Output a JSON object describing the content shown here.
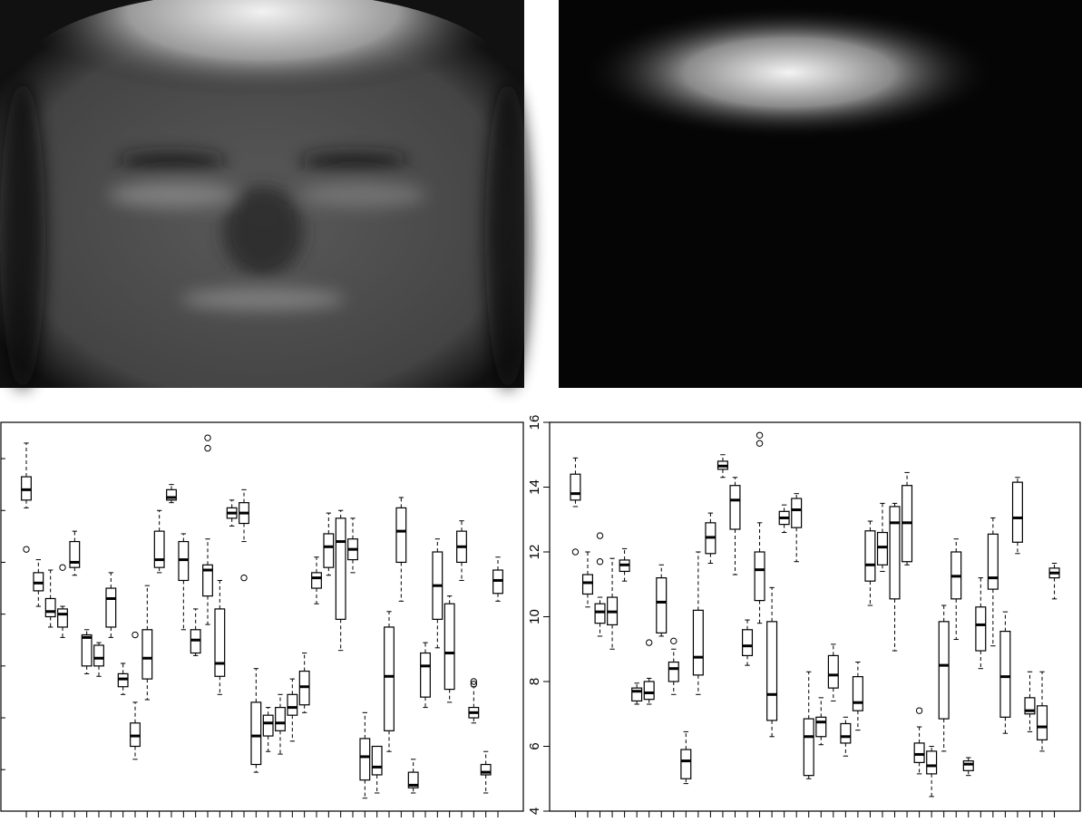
{
  "chart_data": [
    {
      "type": "boxplot",
      "ytick_labels": false,
      "x": [
        1,
        2,
        3,
        4,
        5,
        6,
        7,
        8,
        9,
        10,
        11,
        12,
        13,
        14,
        15,
        16,
        17,
        18,
        19,
        20,
        21,
        22,
        23,
        24,
        25,
        26,
        27,
        28,
        29,
        30,
        31,
        32,
        33,
        34,
        35,
        36,
        37,
        38,
        39,
        40
      ],
      "xlim": [
        -1.1,
        42.1
      ],
      "ylim": [
        2.4,
        17.4
      ],
      "yticks": [
        4,
        6,
        8,
        10,
        12,
        14,
        16
      ],
      "boxes": [
        {
          "min": 14.1,
          "q1": 14.4,
          "median": 14.8,
          "q3": 15.3,
          "max": 16.6,
          "outliers": [
            12.5
          ]
        },
        {
          "min": 10.3,
          "q1": 10.9,
          "median": 11.2,
          "q3": 11.6,
          "max": 12.1
        },
        {
          "min": 9.5,
          "q1": 9.9,
          "median": 10.1,
          "q3": 10.6,
          "max": 11.7
        },
        {
          "min": 9.1,
          "q1": 9.5,
          "median": 10.0,
          "q3": 10.2,
          "max": 10.3,
          "outliers": [
            11.8
          ]
        },
        {
          "min": 11.5,
          "q1": 11.8,
          "median": 12.0,
          "q3": 12.8,
          "max": 13.2
        },
        {
          "min": 7.7,
          "q1": 8.0,
          "median": 9.1,
          "q3": 9.2,
          "max": 9.4
        },
        {
          "min": 7.6,
          "q1": 8.0,
          "median": 8.3,
          "q3": 8.8,
          "max": 8.9
        },
        {
          "min": 9.1,
          "q1": 9.5,
          "median": 10.6,
          "q3": 11.0,
          "max": 11.6
        },
        {
          "min": 6.9,
          "q1": 7.2,
          "median": 7.5,
          "q3": 7.7,
          "max": 8.1
        },
        {
          "min": 4.4,
          "q1": 4.9,
          "median": 5.3,
          "q3": 5.8,
          "max": 6.6,
          "outliers": [
            9.2
          ]
        },
        {
          "min": 6.7,
          "q1": 7.5,
          "median": 8.3,
          "q3": 9.4,
          "max": 11.1
        },
        {
          "min": 11.6,
          "q1": 11.8,
          "median": 12.1,
          "q3": 13.2,
          "max": 14.0
        },
        {
          "min": 14.3,
          "q1": 14.4,
          "median": 14.5,
          "q3": 14.8,
          "max": 15.0
        },
        {
          "min": 9.4,
          "q1": 11.3,
          "median": 12.1,
          "q3": 12.8,
          "max": 13.1
        },
        {
          "min": 8.4,
          "q1": 8.5,
          "median": 9.0,
          "q3": 9.4,
          "max": 10.2
        },
        {
          "min": 9.6,
          "q1": 10.7,
          "median": 11.7,
          "q3": 11.9,
          "max": 12.9,
          "outliers": [
            16.4,
            16.8
          ]
        },
        {
          "min": 6.9,
          "q1": 7.6,
          "median": 8.1,
          "q3": 10.2,
          "max": 11.3
        },
        {
          "min": 13.4,
          "q1": 13.7,
          "median": 13.9,
          "q3": 14.1,
          "max": 14.4
        },
        {
          "min": 12.8,
          "q1": 13.5,
          "median": 13.9,
          "q3": 14.3,
          "max": 14.8,
          "outliers": [
            11.4
          ]
        },
        {
          "min": 3.9,
          "q1": 4.2,
          "median": 5.3,
          "q3": 6.6,
          "max": 7.9
        },
        {
          "min": 4.7,
          "q1": 5.3,
          "median": 5.8,
          "q3": 6.1,
          "max": 6.4
        },
        {
          "min": 4.6,
          "q1": 5.5,
          "median": 5.8,
          "q3": 6.4,
          "max": 6.9
        },
        {
          "min": 5.1,
          "q1": 6.1,
          "median": 6.4,
          "q3": 6.9,
          "max": 7.5
        },
        {
          "min": 6.2,
          "q1": 6.5,
          "median": 7.2,
          "q3": 7.8,
          "max": 8.5
        },
        {
          "min": 10.4,
          "q1": 11.0,
          "median": 11.4,
          "q3": 11.6,
          "max": 12.2
        },
        {
          "min": 11.5,
          "q1": 11.8,
          "median": 12.6,
          "q3": 13.1,
          "max": 13.9
        },
        {
          "min": 8.6,
          "q1": 9.8,
          "median": 12.8,
          "q3": 13.7,
          "max": 14.0
        },
        {
          "min": 11.6,
          "q1": 12.1,
          "median": 12.5,
          "q3": 12.9,
          "max": 13.7
        },
        {
          "min": 2.9,
          "q1": 3.6,
          "median": 4.5,
          "q3": 5.2,
          "max": 6.2
        },
        {
          "min": 3.1,
          "q1": 3.8,
          "median": 4.1,
          "q3": 4.9,
          "max": 4.9
        },
        {
          "min": 4.7,
          "q1": 5.5,
          "median": 7.6,
          "q3": 9.5,
          "max": 10.1
        },
        {
          "min": 10.5,
          "q1": 12.0,
          "median": 13.2,
          "q3": 14.1,
          "max": 14.5
        },
        {
          "min": 3.1,
          "q1": 3.3,
          "median": 3.4,
          "q3": 3.9,
          "max": 4.4
        },
        {
          "min": 6.4,
          "q1": 6.8,
          "median": 8.0,
          "q3": 8.5,
          "max": 8.9
        },
        {
          "min": 8.7,
          "q1": 9.8,
          "median": 11.1,
          "q3": 12.4,
          "max": 12.9
        },
        {
          "min": 6.6,
          "q1": 7.1,
          "median": 8.5,
          "q3": 10.4,
          "max": 10.7
        },
        {
          "min": 11.3,
          "q1": 12.0,
          "median": 12.6,
          "q3": 13.2,
          "max": 13.6
        },
        {
          "min": 5.8,
          "q1": 6.0,
          "median": 6.2,
          "q3": 6.4,
          "max": 7.2,
          "outliers": [
            7.3,
            7.4
          ]
        },
        {
          "min": 3.1,
          "q1": 3.8,
          "median": 3.9,
          "q3": 4.2,
          "max": 4.7
        },
        {
          "min": 10.5,
          "q1": 10.8,
          "median": 11.3,
          "q3": 11.7,
          "max": 12.2
        }
      ]
    },
    {
      "type": "boxplot",
      "ytick_labels": true,
      "x": [
        1,
        2,
        3,
        4,
        5,
        6,
        7,
        8,
        9,
        10,
        11,
        12,
        13,
        14,
        15,
        16,
        17,
        18,
        19,
        20,
        21,
        22,
        23,
        24,
        25,
        26,
        27,
        28,
        29,
        30,
        31,
        32,
        33,
        34,
        35,
        36,
        37,
        38,
        39,
        40
      ],
      "xlim": [
        -1.1,
        42.1
      ],
      "ylim": [
        4,
        16
      ],
      "yticks": [
        4,
        6,
        8,
        10,
        12,
        14,
        16
      ],
      "boxes": [
        {
          "min": 13.4,
          "q1": 13.6,
          "median": 13.8,
          "q3": 14.4,
          "max": 14.9,
          "outliers": [
            12.0
          ]
        },
        {
          "min": 10.3,
          "q1": 10.7,
          "median": 11.05,
          "q3": 11.3,
          "max": 12.0
        },
        {
          "min": 9.4,
          "q1": 9.8,
          "median": 10.15,
          "q3": 10.4,
          "max": 10.6,
          "outliers": [
            12.5,
            11.7
          ]
        },
        {
          "min": 9.0,
          "q1": 9.75,
          "median": 10.15,
          "q3": 10.6,
          "max": 11.8
        },
        {
          "min": 11.1,
          "q1": 11.4,
          "median": 11.6,
          "q3": 11.75,
          "max": 12.1
        },
        {
          "min": 7.3,
          "q1": 7.4,
          "median": 7.7,
          "q3": 7.8,
          "max": 7.95
        },
        {
          "min": 7.3,
          "q1": 7.45,
          "median": 7.65,
          "q3": 8.0,
          "max": 8.1,
          "outliers": [
            9.2
          ]
        },
        {
          "min": 9.4,
          "q1": 9.5,
          "median": 10.45,
          "q3": 11.2,
          "max": 11.6
        },
        {
          "min": 7.6,
          "q1": 8.0,
          "median": 8.4,
          "q3": 8.6,
          "max": 9.0,
          "outliers": [
            9.25
          ]
        },
        {
          "min": 4.85,
          "q1": 5.0,
          "median": 5.55,
          "q3": 5.9,
          "max": 6.45
        },
        {
          "min": 7.6,
          "q1": 8.2,
          "median": 8.75,
          "q3": 10.2,
          "max": 12.0
        },
        {
          "min": 11.65,
          "q1": 11.95,
          "median": 12.45,
          "q3": 12.9,
          "max": 13.2
        },
        {
          "min": 14.3,
          "q1": 14.55,
          "median": 14.65,
          "q3": 14.8,
          "max": 15.0
        },
        {
          "min": 11.3,
          "q1": 12.7,
          "median": 13.6,
          "q3": 14.05,
          "max": 14.3
        },
        {
          "min": 8.5,
          "q1": 8.8,
          "median": 9.1,
          "q3": 9.6,
          "max": 9.9
        },
        {
          "min": 9.8,
          "q1": 10.5,
          "median": 11.45,
          "q3": 12.0,
          "max": 12.9,
          "outliers": [
            15.6,
            15.35
          ]
        },
        {
          "min": 6.3,
          "q1": 6.8,
          "median": 7.6,
          "q3": 9.85,
          "max": 10.9
        },
        {
          "min": 12.6,
          "q1": 12.85,
          "median": 13.05,
          "q3": 13.25,
          "max": 13.45
        },
        {
          "min": 11.7,
          "q1": 12.75,
          "median": 13.3,
          "q3": 13.65,
          "max": 13.8
        },
        {
          "min": 5.0,
          "q1": 5.1,
          "median": 6.3,
          "q3": 6.85,
          "max": 8.3
        },
        {
          "min": 6.05,
          "q1": 6.3,
          "median": 6.75,
          "q3": 6.9,
          "max": 7.5
        },
        {
          "min": 7.4,
          "q1": 7.8,
          "median": 8.2,
          "q3": 8.8,
          "max": 9.15
        },
        {
          "min": 5.7,
          "q1": 6.1,
          "median": 6.3,
          "q3": 6.7,
          "max": 6.9
        },
        {
          "min": 6.5,
          "q1": 7.1,
          "median": 7.35,
          "q3": 8.15,
          "max": 8.6
        },
        {
          "min": 10.35,
          "q1": 11.1,
          "median": 11.6,
          "q3": 12.65,
          "max": 12.95
        },
        {
          "min": 11.4,
          "q1": 11.6,
          "median": 12.15,
          "q3": 12.6,
          "max": 13.5
        },
        {
          "min": 8.95,
          "q1": 10.55,
          "median": 12.9,
          "q3": 13.4,
          "max": 13.5
        },
        {
          "min": 11.6,
          "q1": 11.7,
          "median": 12.9,
          "q3": 14.05,
          "max": 14.45
        },
        {
          "min": 5.15,
          "q1": 5.5,
          "median": 5.75,
          "q3": 6.1,
          "max": 6.6,
          "outliers": [
            7.1
          ]
        },
        {
          "min": 4.45,
          "q1": 5.15,
          "median": 5.4,
          "q3": 5.85,
          "max": 6.0
        },
        {
          "min": 5.85,
          "q1": 6.85,
          "median": 8.5,
          "q3": 9.85,
          "max": 10.35
        },
        {
          "min": 9.3,
          "q1": 10.55,
          "median": 11.25,
          "q3": 12.0,
          "max": 12.4
        },
        {
          "min": 5.1,
          "q1": 5.25,
          "median": 5.45,
          "q3": 5.55,
          "max": 5.65
        },
        {
          "min": 8.4,
          "q1": 8.95,
          "median": 9.75,
          "q3": 10.3,
          "max": 11.2
        },
        {
          "min": 9.1,
          "q1": 10.85,
          "median": 11.2,
          "q3": 12.55,
          "max": 13.05
        },
        {
          "min": 6.4,
          "q1": 6.9,
          "median": 8.15,
          "q3": 9.55,
          "max": 10.15
        },
        {
          "min": 11.95,
          "q1": 12.3,
          "median": 13.05,
          "q3": 14.15,
          "max": 14.3
        },
        {
          "min": 6.45,
          "q1": 7.0,
          "median": 7.1,
          "q3": 7.5,
          "max": 8.3
        },
        {
          "min": 5.85,
          "q1": 6.2,
          "median": 6.6,
          "q3": 7.25,
          "max": 8.3
        },
        {
          "min": 10.55,
          "q1": 11.2,
          "median": 11.35,
          "q3": 11.5,
          "max": 11.65
        }
      ]
    }
  ]
}
